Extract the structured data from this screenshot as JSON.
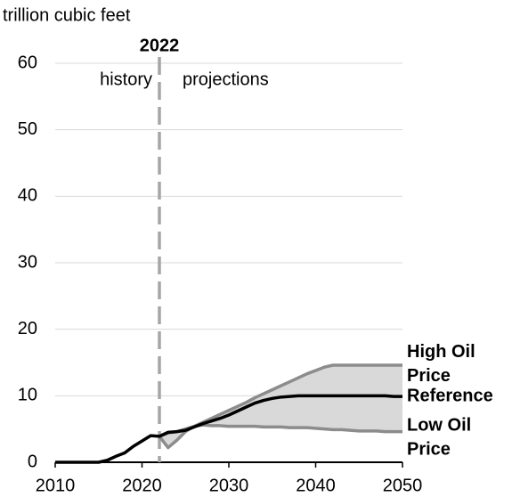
{
  "chart_data": {
    "type": "line",
    "subtitle": "trillion cubic feet",
    "x": [
      2010,
      2011,
      2012,
      2013,
      2014,
      2015,
      2016,
      2017,
      2018,
      2019,
      2020,
      2021,
      2022,
      2023,
      2024,
      2025,
      2026,
      2027,
      2028,
      2029,
      2030,
      2031,
      2032,
      2033,
      2034,
      2035,
      2036,
      2037,
      2038,
      2039,
      2040,
      2041,
      2042,
      2043,
      2044,
      2045,
      2046,
      2047,
      2048,
      2049,
      2050
    ],
    "series": [
      {
        "name": "High Oil Price",
        "color": "#8c8c8c",
        "values": [
          null,
          null,
          null,
          null,
          null,
          null,
          null,
          null,
          null,
          null,
          null,
          null,
          3.9,
          2.2,
          3.3,
          4.6,
          5.4,
          6.0,
          6.6,
          7.2,
          7.8,
          8.4,
          9.0,
          9.7,
          10.3,
          10.9,
          11.5,
          12.1,
          12.7,
          13.3,
          13.8,
          14.3,
          14.6,
          14.6,
          14.6,
          14.6,
          14.6,
          14.6,
          14.6,
          14.6,
          14.6
        ]
      },
      {
        "name": "Reference",
        "color": "#000000",
        "values": [
          0,
          0,
          0,
          0,
          0,
          0,
          0.3,
          0.9,
          1.4,
          2.4,
          3.2,
          4.0,
          3.9,
          4.5,
          4.6,
          4.8,
          5.3,
          5.8,
          6.2,
          6.6,
          7.1,
          7.7,
          8.3,
          8.9,
          9.3,
          9.6,
          9.8,
          9.9,
          10.0,
          10.0,
          10.0,
          10.0,
          10.0,
          10.0,
          10.0,
          10.0,
          10.0,
          10.0,
          10.0,
          9.9,
          9.9
        ]
      },
      {
        "name": "Low Oil Price",
        "color": "#8c8c8c",
        "values": [
          null,
          null,
          null,
          null,
          null,
          null,
          null,
          null,
          null,
          null,
          null,
          null,
          3.9,
          4.4,
          4.6,
          5.0,
          5.4,
          5.6,
          5.5,
          5.5,
          5.4,
          5.4,
          5.4,
          5.4,
          5.3,
          5.3,
          5.3,
          5.2,
          5.2,
          5.2,
          5.1,
          5.0,
          4.9,
          4.9,
          4.8,
          4.7,
          4.7,
          4.7,
          4.6,
          4.6,
          4.6
        ]
      }
    ],
    "band_color": "#d9d9d9",
    "divider": 2022,
    "history_label": "history",
    "projections_label": "projections",
    "xlim": [
      2010,
      2050
    ],
    "xticks": [
      2010,
      2020,
      2030,
      2040,
      2050
    ],
    "ylim": [
      0,
      60
    ],
    "yticks": [
      0,
      10,
      20,
      30,
      40,
      50,
      60
    ],
    "grid": true
  }
}
